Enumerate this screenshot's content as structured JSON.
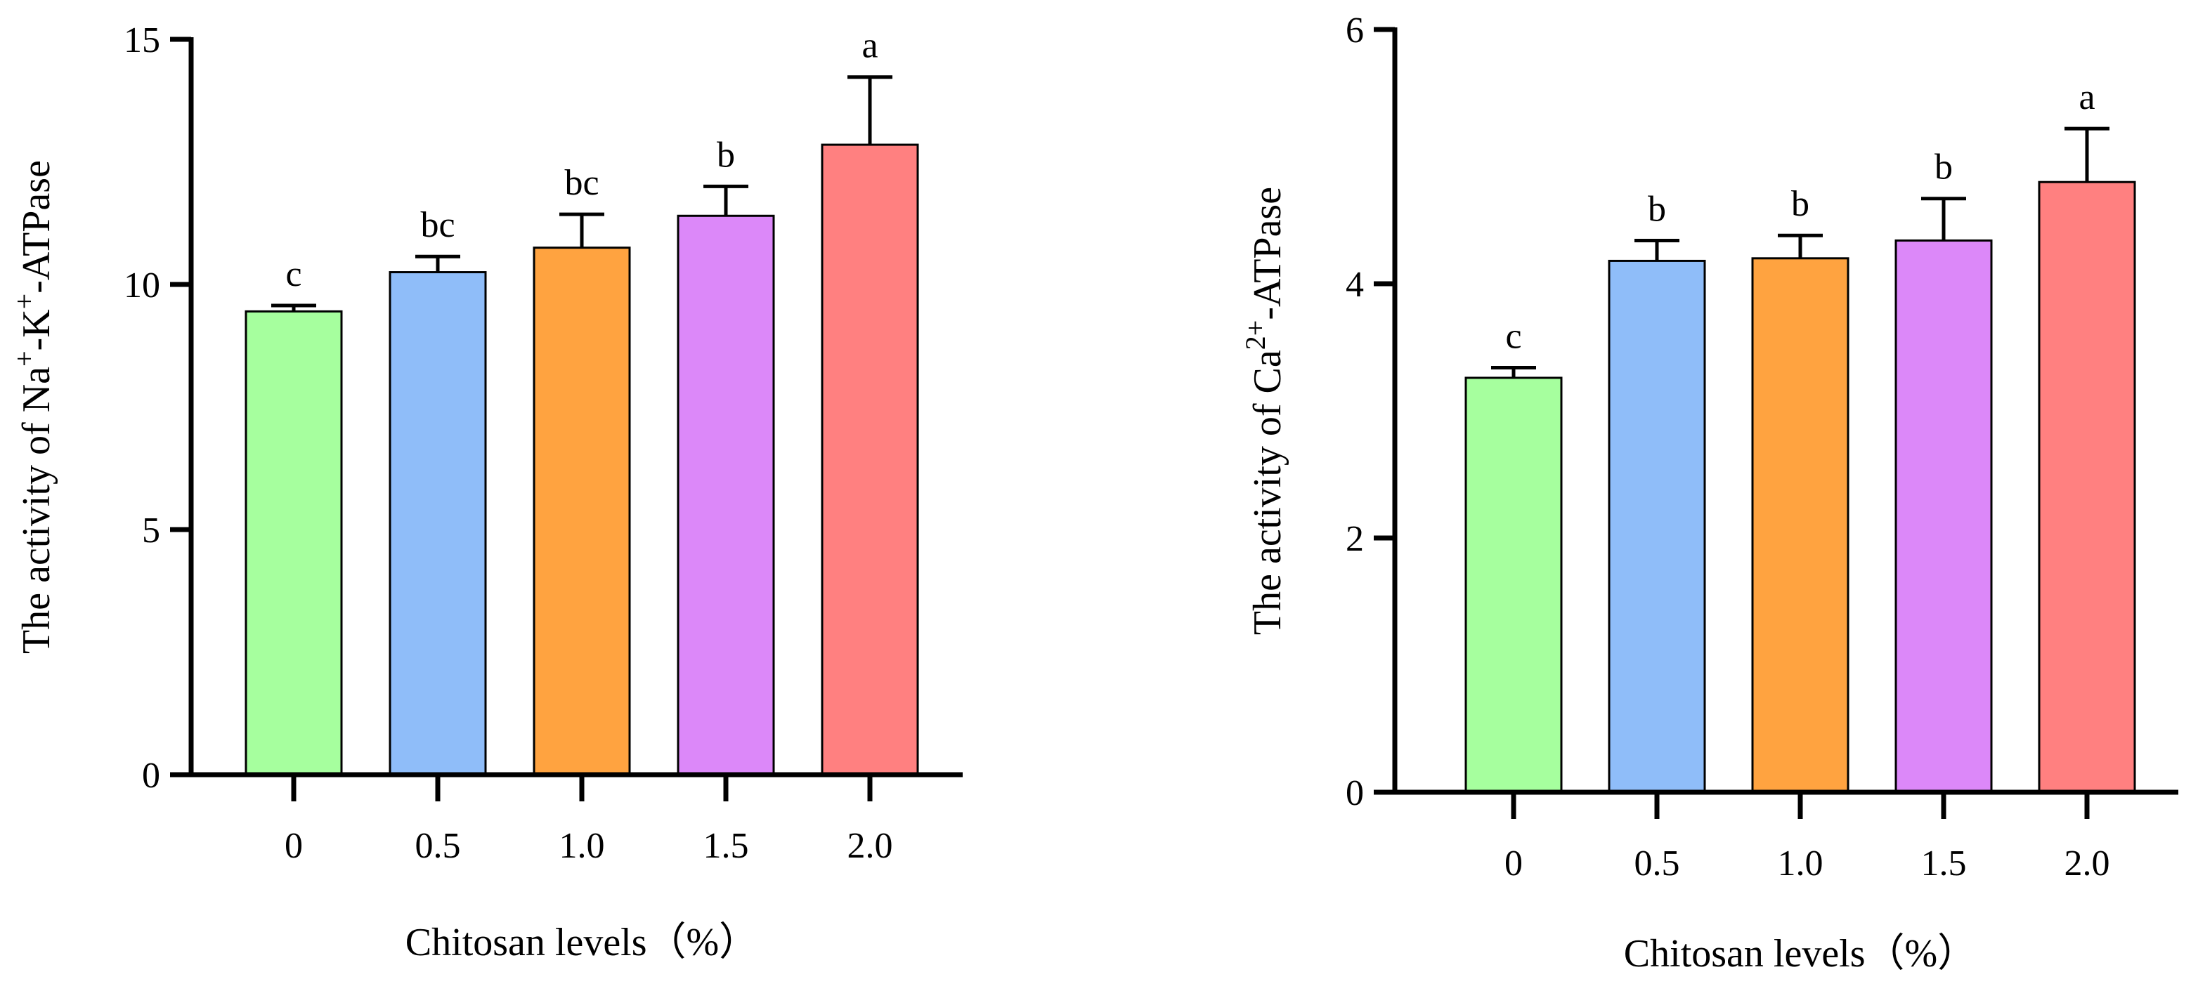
{
  "chart_data": [
    {
      "type": "bar",
      "categories": [
        "0",
        "0.5",
        "1.0",
        "1.5",
        "2.0"
      ],
      "values": [
        9.45,
        10.25,
        10.75,
        11.4,
        12.85
      ],
      "errors": [
        0.12,
        0.32,
        0.68,
        0.6,
        1.38
      ],
      "significance": [
        "c",
        "bc",
        "bc",
        "b",
        "a"
      ],
      "colors": [
        "#a6ff9e",
        "#8fbdf9",
        "#ffa340",
        "#dc88f9",
        "#ff8080"
      ],
      "xlabel": "Chitosan  levels（%）",
      "ylabel_parts": {
        "prefix": "The activity of  Na",
        "sup1": "+",
        "mid": "-K",
        "sup2": "+",
        "suffix": "-ATPase"
      },
      "ylim": [
        0,
        15
      ],
      "yticks": [
        0,
        5,
        10,
        15
      ]
    },
    {
      "type": "bar",
      "categories": [
        "0",
        "0.5",
        "1.0",
        "1.5",
        "2.0"
      ],
      "values": [
        3.26,
        4.18,
        4.2,
        4.34,
        4.8
      ],
      "errors": [
        0.08,
        0.16,
        0.18,
        0.33,
        0.42
      ],
      "significance": [
        "c",
        "b",
        "b",
        "b",
        "a"
      ],
      "colors": [
        "#a6ff9e",
        "#8fbdf9",
        "#ffa340",
        "#dc88f9",
        "#ff8080"
      ],
      "xlabel": "Chitosan  levels（%）",
      "ylabel_parts": {
        "prefix": "The activity of  Ca",
        "sup1": "2+",
        "mid": "",
        "sup2": "",
        "suffix": "-ATPase"
      },
      "ylim": [
        0,
        6
      ],
      "yticks": [
        0,
        2,
        4,
        6
      ]
    }
  ]
}
